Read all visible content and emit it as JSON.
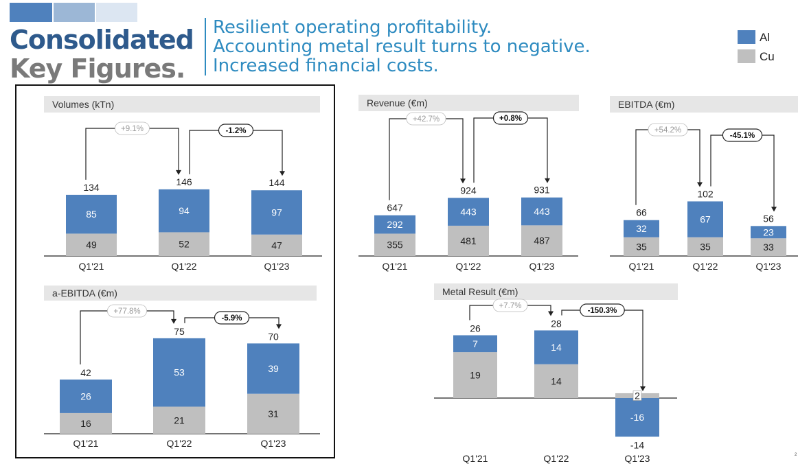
{
  "header": {
    "title_line1": "Consolidated",
    "title_line2": "Key Figures.",
    "subtitle_lines": [
      "Resilient operating profitability.",
      "Accounting metal result turns to negative.",
      "Increased financial costs."
    ]
  },
  "legend": [
    {
      "label": "Al",
      "color": "#4f81bd"
    },
    {
      "label": "Cu",
      "color": "#bfbfbf"
    }
  ],
  "colors": {
    "title_blue": "#2e5a8c",
    "title_gray": "#7a7a7a",
    "subtitle_blue": "#2e8bc0",
    "panel_header_bg": "#e6e6e6",
    "deco": [
      "#4f81bd",
      "#9cb7d6",
      "#dce6f2"
    ]
  },
  "page_number": "2",
  "chart_data": [
    {
      "id": "volumes",
      "type": "bar",
      "stacked": true,
      "title": "Volumes (kTn)",
      "categories": [
        "Q1'21",
        "Q1'22",
        "Q1'23"
      ],
      "series": [
        {
          "name": "Cu",
          "values": [
            49,
            52,
            47
          ]
        },
        {
          "name": "Al",
          "values": [
            85,
            94,
            97
          ]
        }
      ],
      "totals": [
        134,
        146,
        144
      ],
      "changes": [
        {
          "from": 0,
          "to": 1,
          "label": "+9.1%",
          "style": "light"
        },
        {
          "from": 1,
          "to": 2,
          "label": "-1.2%",
          "style": "dark"
        }
      ]
    },
    {
      "id": "revenue",
      "type": "bar",
      "stacked": true,
      "title": "Revenue (€m)",
      "categories": [
        "Q1'21",
        "Q1'22",
        "Q1'23"
      ],
      "series": [
        {
          "name": "Cu",
          "values": [
            355,
            481,
            487
          ]
        },
        {
          "name": "Al",
          "values": [
            292,
            443,
            443
          ]
        }
      ],
      "totals": [
        647,
        924,
        931
      ],
      "changes": [
        {
          "from": 0,
          "to": 1,
          "label": "+42.7%",
          "style": "light"
        },
        {
          "from": 1,
          "to": 2,
          "label": "+0.8%",
          "style": "dark"
        }
      ]
    },
    {
      "id": "ebitda",
      "type": "bar",
      "stacked": true,
      "title": "EBITDA (€m)",
      "categories": [
        "Q1'21",
        "Q1'22",
        "Q1'23"
      ],
      "series": [
        {
          "name": "Cu",
          "values": [
            35,
            35,
            33
          ]
        },
        {
          "name": "Al",
          "values": [
            32,
            67,
            23
          ]
        }
      ],
      "totals": [
        66,
        102,
        56
      ],
      "changes": [
        {
          "from": 0,
          "to": 1,
          "label": "+54.2%",
          "style": "light"
        },
        {
          "from": 1,
          "to": 2,
          "label": "-45.1%",
          "style": "dark"
        }
      ]
    },
    {
      "id": "aebitda",
      "type": "bar",
      "stacked": true,
      "title": "a-EBITDA (€m)",
      "categories": [
        "Q1'21",
        "Q1'22",
        "Q1'23"
      ],
      "series": [
        {
          "name": "Cu",
          "values": [
            16,
            21,
            31
          ]
        },
        {
          "name": "Al",
          "values": [
            26,
            53,
            39
          ]
        }
      ],
      "totals": [
        42,
        75,
        70
      ],
      "changes": [
        {
          "from": 0,
          "to": 1,
          "label": "+77.8%",
          "style": "light"
        },
        {
          "from": 1,
          "to": 2,
          "label": "-5.9%",
          "style": "dark"
        }
      ]
    },
    {
      "id": "metal",
      "type": "bar",
      "stacked": true,
      "title": "Metal Result (€m)",
      "categories": [
        "Q1'21",
        "Q1'22",
        "Q1'23"
      ],
      "series": [
        {
          "name": "Cu",
          "values": [
            19,
            14,
            2
          ]
        },
        {
          "name": "Al",
          "values": [
            7,
            14,
            -16
          ]
        }
      ],
      "totals": [
        26,
        28,
        -14
      ],
      "changes": [
        {
          "from": 0,
          "to": 1,
          "label": "+7.7%",
          "style": "light"
        },
        {
          "from": 1,
          "to": 2,
          "label": "-150.3%",
          "style": "dark"
        }
      ]
    }
  ]
}
